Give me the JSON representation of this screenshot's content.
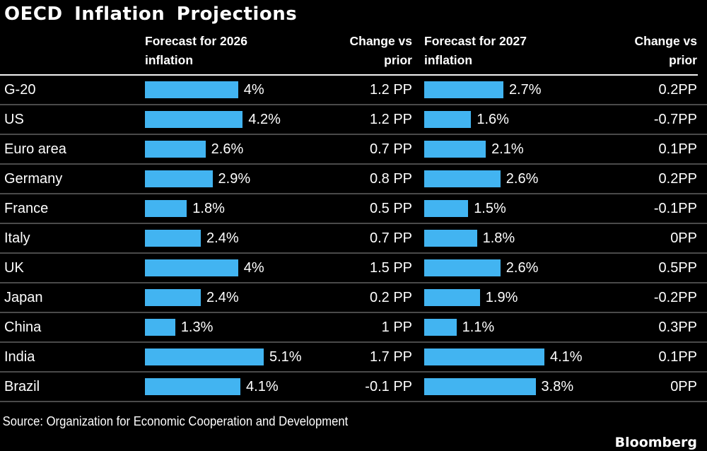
{
  "title": "OECD Inflation Projections",
  "colors": {
    "background": "#000000",
    "bar": "#42b4f1",
    "separator": "#4a4a4a",
    "header_rule": "#f2f2f2",
    "text": "#ffffff"
  },
  "header": {
    "col_country": "",
    "col_2026": "Forecast for 2026 inflation",
    "col_change_2026": "Change vs prior",
    "col_2027": "Forecast for 2027 inflation",
    "col_change_2027": "Change vs prior"
  },
  "rows": [
    {
      "label": "G-20",
      "value_2026": 4.0,
      "value_2026_label": "4%",
      "change_2026": "1.2 PP",
      "value_2027": 2.7,
      "value_2027_label": "2.7%",
      "change_2027": "0.2PP"
    },
    {
      "label": "US",
      "value_2026": 4.2,
      "value_2026_label": "4.2%",
      "change_2026": "1.2 PP",
      "value_2027": 1.6,
      "value_2027_label": "1.6%",
      "change_2027": "-0.7PP"
    },
    {
      "label": "Euro area",
      "value_2026": 2.6,
      "value_2026_label": "2.6%",
      "change_2026": "0.7 PP",
      "value_2027": 2.1,
      "value_2027_label": "2.1%",
      "change_2027": "0.1PP"
    },
    {
      "label": "Germany",
      "value_2026": 2.9,
      "value_2026_label": "2.9%",
      "change_2026": "0.8 PP",
      "value_2027": 2.6,
      "value_2027_label": "2.6%",
      "change_2027": "0.2PP"
    },
    {
      "label": "France",
      "value_2026": 1.8,
      "value_2026_label": "1.8%",
      "change_2026": "0.5 PP",
      "value_2027": 1.5,
      "value_2027_label": "1.5%",
      "change_2027": "-0.1PP"
    },
    {
      "label": "Italy",
      "value_2026": 2.4,
      "value_2026_label": "2.4%",
      "change_2026": "0.7 PP",
      "value_2027": 1.8,
      "value_2027_label": "1.8%",
      "change_2027": "0PP"
    },
    {
      "label": "UK",
      "value_2026": 4.0,
      "value_2026_label": "4%",
      "change_2026": "1.5 PP",
      "value_2027": 2.6,
      "value_2027_label": "2.6%",
      "change_2027": "0.5PP"
    },
    {
      "label": "Japan",
      "value_2026": 2.4,
      "value_2026_label": "2.4%",
      "change_2026": "0.2 PP",
      "value_2027": 1.9,
      "value_2027_label": "1.9%",
      "change_2027": "-0.2PP"
    },
    {
      "label": "China",
      "value_2026": 1.3,
      "value_2026_label": "1.3%",
      "change_2026": "1 PP",
      "value_2027": 1.1,
      "value_2027_label": "1.1%",
      "change_2027": "0.3PP"
    },
    {
      "label": "India",
      "value_2026": 5.1,
      "value_2026_label": "5.1%",
      "change_2026": "1.7 PP",
      "value_2027": 4.1,
      "value_2027_label": "4.1%",
      "change_2027": "0.1PP"
    },
    {
      "label": "Brazil",
      "value_2026": 4.1,
      "value_2026_label": "4.1%",
      "change_2026": "-0.1 PP",
      "value_2027": 3.8,
      "value_2027_label": "3.8%",
      "change_2027": "0PP"
    }
  ],
  "footer": {
    "source": "Source: Organization for Economic Cooperation and Development",
    "brand": "Bloomberg"
  },
  "chart_data": {
    "type": "bar",
    "orientation": "horizontal",
    "title": "OECD Inflation Projections",
    "categories": [
      "G-20",
      "US",
      "Euro area",
      "Germany",
      "France",
      "Italy",
      "UK",
      "Japan",
      "China",
      "India",
      "Brazil"
    ],
    "series": [
      {
        "name": "Forecast for 2026 inflation",
        "unit": "%",
        "values": [
          4.0,
          4.2,
          2.6,
          2.9,
          1.8,
          2.4,
          4.0,
          2.4,
          1.3,
          5.1,
          4.1
        ]
      },
      {
        "name": "Change vs prior (2026)",
        "unit": "PP",
        "values": [
          1.2,
          1.2,
          0.7,
          0.8,
          0.5,
          0.7,
          1.5,
          0.2,
          1.0,
          1.7,
          -0.1
        ]
      },
      {
        "name": "Forecast for 2027 inflation",
        "unit": "%",
        "values": [
          2.7,
          1.6,
          2.1,
          2.6,
          1.5,
          1.8,
          2.6,
          1.9,
          1.1,
          4.1,
          3.8
        ]
      },
      {
        "name": "Change vs prior (2027)",
        "unit": "PP",
        "values": [
          0.2,
          -0.7,
          0.1,
          0.2,
          -0.1,
          0.0,
          0.5,
          -0.2,
          0.3,
          0.1,
          0.0
        ]
      }
    ],
    "bars_colored_columns": [
      "Forecast for 2026 inflation",
      "Forecast for 2027 inflation"
    ],
    "bar_scaling": "each forecast column scaled independently to its own maximum",
    "legend": "none",
    "grid": "off",
    "source": "Source: Organization for Economic Cooperation and Development"
  }
}
